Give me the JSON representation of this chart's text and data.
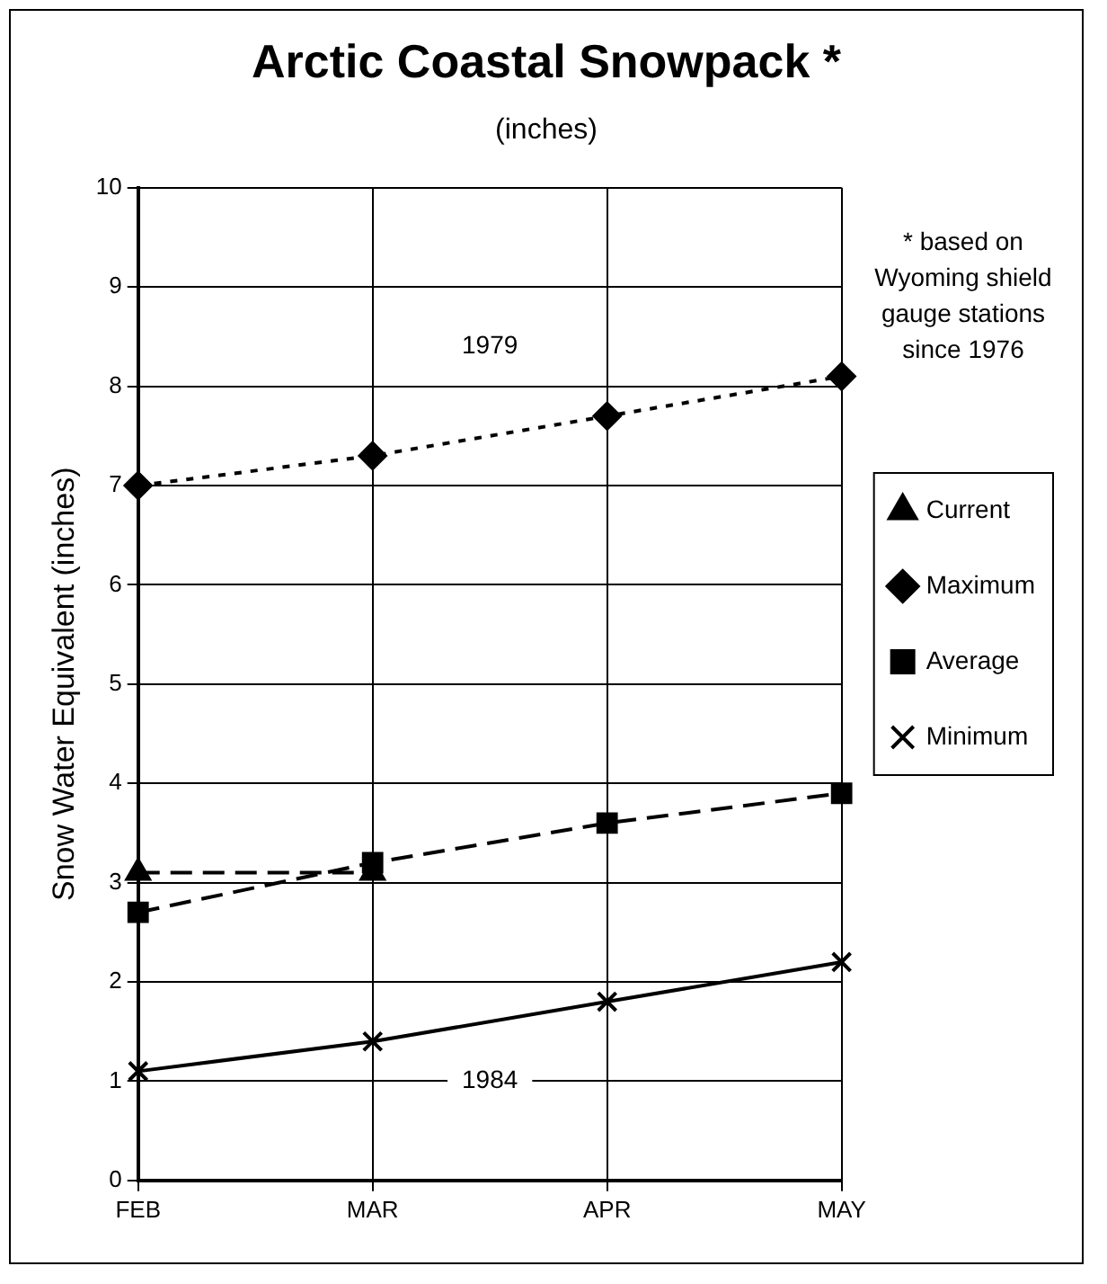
{
  "chart_data": {
    "type": "line",
    "title": "Arctic Coastal Snowpack *",
    "subtitle": "(inches)",
    "ylabel": "Snow Water Equivalent (inches)",
    "categories": [
      "FEB",
      "MAR",
      "APR",
      "MAY"
    ],
    "series": [
      {
        "name": "Current",
        "color": "#000000",
        "values": [
          3.1,
          3.1,
          null,
          null
        ],
        "marker": "triangle",
        "line_style": "dashed"
      },
      {
        "name": "Maximum",
        "color": "#000000",
        "values": [
          7.0,
          7.3,
          7.7,
          8.1
        ],
        "marker": "diamond",
        "line_style": "dotted"
      },
      {
        "name": "Average",
        "color": "#000000",
        "values": [
          2.7,
          3.2,
          3.6,
          3.9
        ],
        "marker": "square",
        "line_style": "dashed"
      },
      {
        "name": "Minimum",
        "color": "#000000",
        "values": [
          1.1,
          1.4,
          1.8,
          2.2
        ],
        "marker": "cross",
        "line_style": "solid"
      }
    ],
    "ylim": [
      0,
      10
    ],
    "yticks": [
      0,
      1,
      2,
      3,
      4,
      5,
      6,
      7,
      8,
      9,
      10
    ],
    "grid": true,
    "legend": "right",
    "annotations": [
      "1979",
      "1984",
      "* based on Wyoming shield gauge stations since 1976"
    ]
  }
}
